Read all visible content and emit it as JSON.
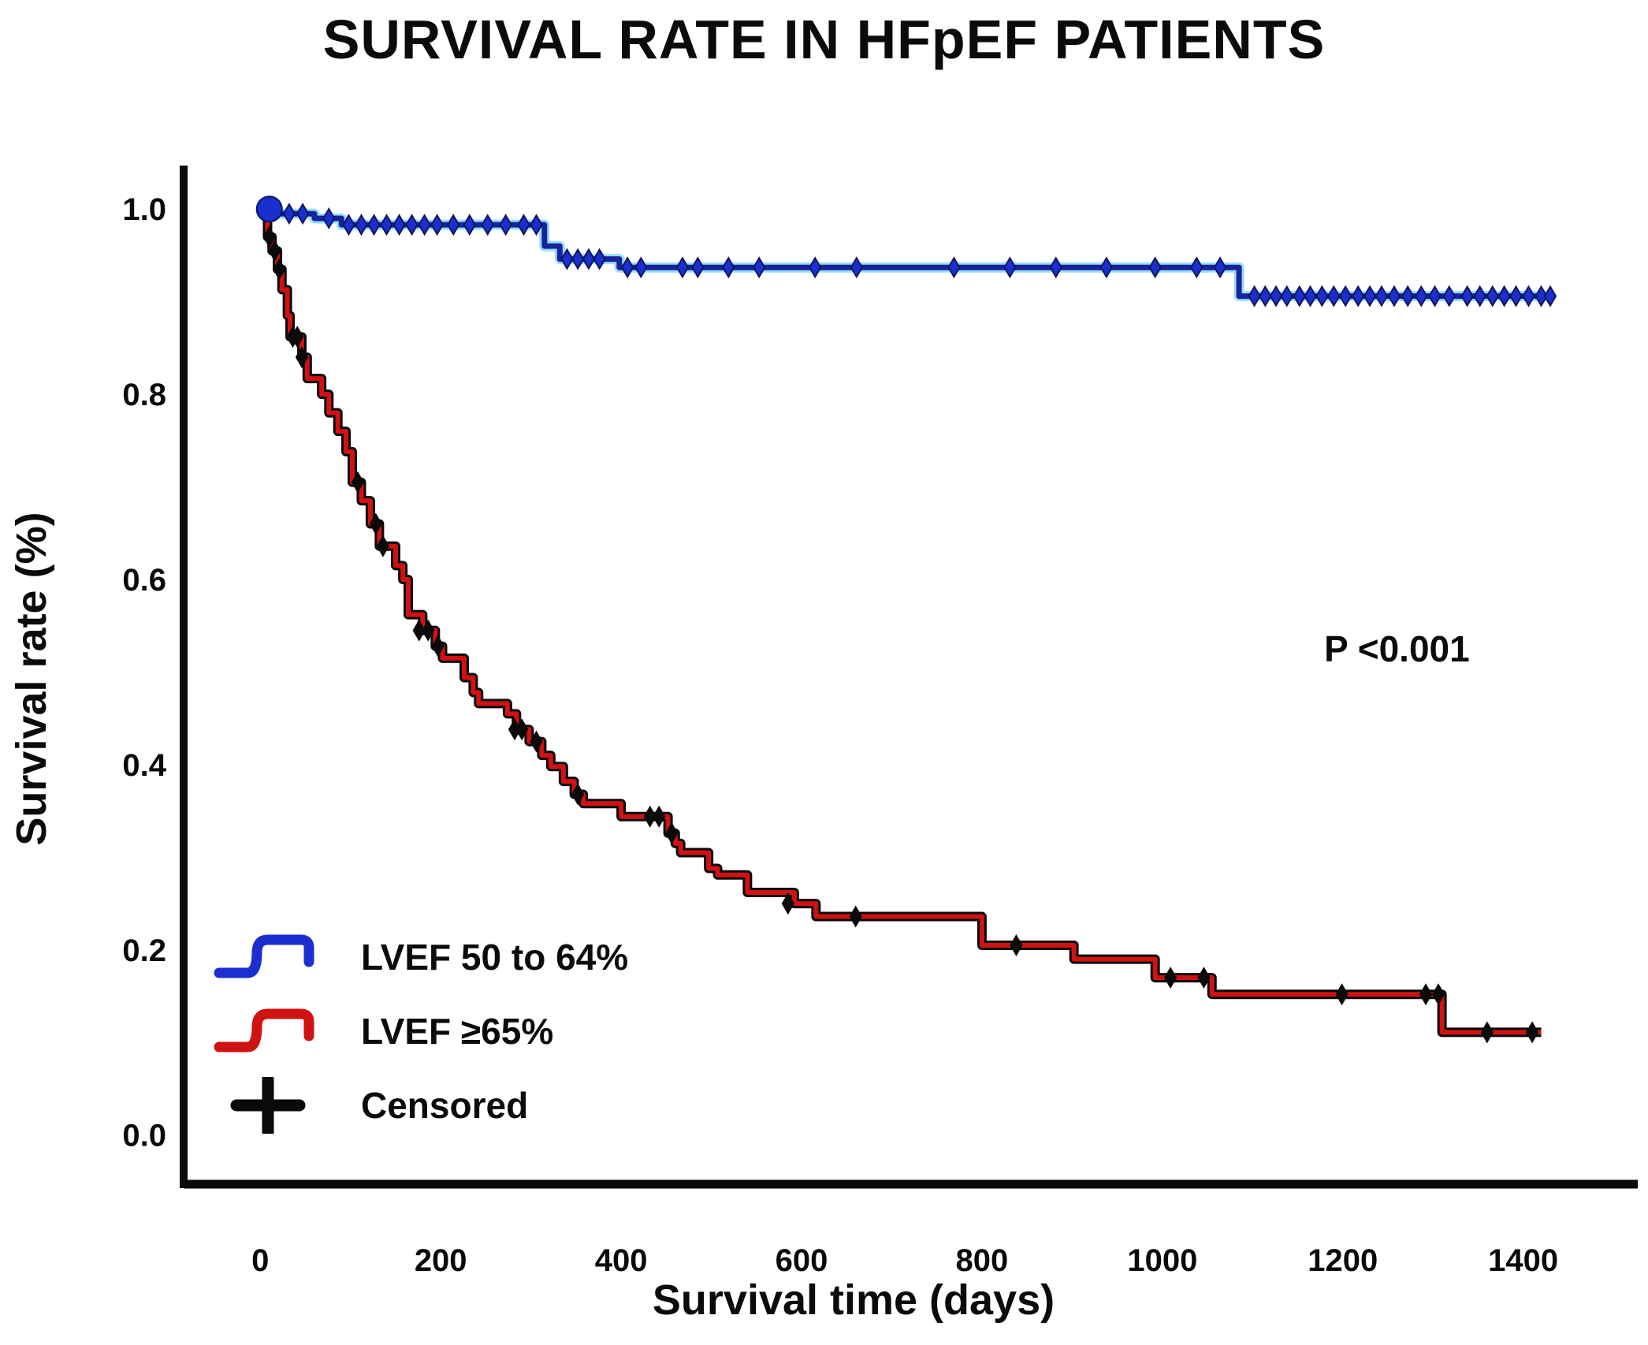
{
  "title": "SURVIVAL RATE IN HFpEF PATIENTS",
  "chart_data": {
    "type": "line",
    "subtype": "kaplan-meier-step",
    "title": "SURVIVAL RATE IN HFpEF PATIENTS",
    "xlabel": "Survival time (days)",
    "ylabel": "Survival rate (%)",
    "xlim": [
      -85,
      1527
    ],
    "ylim": [
      -0.053,
      1.047
    ],
    "x_ticks": [
      0,
      200,
      400,
      600,
      800,
      1000,
      1200,
      1400
    ],
    "y_ticks": [
      0.0,
      0.2,
      0.4,
      0.6,
      0.8,
      1.0
    ],
    "y_tick_labels": [
      "0.0",
      "0.2",
      "0.4",
      "0.6",
      "0.8",
      "1.0"
    ],
    "grid": false,
    "legend_position": "lower-left",
    "annotation": {
      "text": "P <0.001",
      "day": 1260,
      "value": 0.525
    },
    "colors": {
      "blue_line": "#15249b",
      "blue_halo": "#9adcf5",
      "blue_marker": "#1b2fd0",
      "red_line": "#cf1212",
      "black": "#0a0a0a"
    },
    "series": [
      {
        "name": "LVEF 50 to 64%",
        "color": "#15249b",
        "end_day": 1432,
        "start_marker": {
          "day": 10,
          "value": 1.0
        },
        "steps": [
          [
            0,
            1.0
          ],
          [
            20,
            0.995
          ],
          [
            60,
            0.99
          ],
          [
            90,
            0.983
          ],
          [
            315,
            0.96
          ],
          [
            332,
            0.946
          ],
          [
            398,
            0.937
          ],
          [
            1085,
            0.906
          ]
        ],
        "censors": [
          [
            8,
            1.0
          ],
          [
            14,
            1.0
          ],
          [
            32,
            0.995
          ],
          [
            47,
            0.995
          ],
          [
            76,
            0.99
          ],
          [
            98,
            0.983
          ],
          [
            112,
            0.983
          ],
          [
            126,
            0.983
          ],
          [
            140,
            0.983
          ],
          [
            154,
            0.983
          ],
          [
            168,
            0.983
          ],
          [
            182,
            0.983
          ],
          [
            196,
            0.983
          ],
          [
            214,
            0.983
          ],
          [
            232,
            0.983
          ],
          [
            252,
            0.983
          ],
          [
            272,
            0.983
          ],
          [
            292,
            0.983
          ],
          [
            306,
            0.983
          ],
          [
            340,
            0.946
          ],
          [
            352,
            0.946
          ],
          [
            364,
            0.946
          ],
          [
            376,
            0.946
          ],
          [
            407,
            0.937
          ],
          [
            422,
            0.937
          ],
          [
            468,
            0.937
          ],
          [
            485,
            0.937
          ],
          [
            519,
            0.937
          ],
          [
            553,
            0.937
          ],
          [
            615,
            0.937
          ],
          [
            661,
            0.937
          ],
          [
            769,
            0.937
          ],
          [
            831,
            0.937
          ],
          [
            882,
            0.937
          ],
          [
            938,
            0.937
          ],
          [
            992,
            0.937
          ],
          [
            1038,
            0.937
          ],
          [
            1064,
            0.937
          ],
          [
            1102,
            0.906
          ],
          [
            1114,
            0.906
          ],
          [
            1126,
            0.906
          ],
          [
            1138,
            0.906
          ],
          [
            1152,
            0.906
          ],
          [
            1164,
            0.906
          ],
          [
            1177,
            0.906
          ],
          [
            1190,
            0.906
          ],
          [
            1203,
            0.906
          ],
          [
            1217,
            0.906
          ],
          [
            1230,
            0.906
          ],
          [
            1243,
            0.906
          ],
          [
            1257,
            0.906
          ],
          [
            1272,
            0.906
          ],
          [
            1287,
            0.906
          ],
          [
            1302,
            0.906
          ],
          [
            1318,
            0.906
          ],
          [
            1338,
            0.906
          ],
          [
            1352,
            0.906
          ],
          [
            1366,
            0.906
          ],
          [
            1379,
            0.906
          ],
          [
            1392,
            0.906
          ],
          [
            1406,
            0.906
          ],
          [
            1420,
            0.906
          ],
          [
            1430,
            0.906
          ]
        ]
      },
      {
        "name": "LVEF ≥65%",
        "color": "#cf1212",
        "end_day": 1420,
        "steps": [
          [
            0,
            1.0
          ],
          [
            8,
            0.97
          ],
          [
            13,
            0.955
          ],
          [
            19,
            0.935
          ],
          [
            24,
            0.913
          ],
          [
            30,
            0.885
          ],
          [
            33,
            0.862
          ],
          [
            46,
            0.84
          ],
          [
            52,
            0.817
          ],
          [
            68,
            0.8
          ],
          [
            76,
            0.78
          ],
          [
            86,
            0.76
          ],
          [
            95,
            0.738
          ],
          [
            102,
            0.705
          ],
          [
            112,
            0.685
          ],
          [
            122,
            0.66
          ],
          [
            132,
            0.636
          ],
          [
            150,
            0.615
          ],
          [
            158,
            0.6
          ],
          [
            164,
            0.562
          ],
          [
            180,
            0.545
          ],
          [
            194,
            0.528
          ],
          [
            202,
            0.515
          ],
          [
            226,
            0.494
          ],
          [
            236,
            0.478
          ],
          [
            242,
            0.466
          ],
          [
            274,
            0.455
          ],
          [
            284,
            0.438
          ],
          [
            298,
            0.425
          ],
          [
            312,
            0.41
          ],
          [
            322,
            0.398
          ],
          [
            336,
            0.382
          ],
          [
            348,
            0.368
          ],
          [
            358,
            0.358
          ],
          [
            400,
            0.344
          ],
          [
            452,
            0.326
          ],
          [
            460,
            0.315
          ],
          [
            466,
            0.305
          ],
          [
            497,
            0.288
          ],
          [
            507,
            0.281
          ],
          [
            540,
            0.262
          ],
          [
            592,
            0.25
          ],
          [
            616,
            0.236
          ],
          [
            800,
            0.205
          ],
          [
            902,
            0.19
          ],
          [
            992,
            0.17
          ],
          [
            1055,
            0.152
          ],
          [
            1310,
            0.111
          ]
        ],
        "censors": [
          [
            10,
            0.97
          ],
          [
            16,
            0.955
          ],
          [
            21,
            0.935
          ],
          [
            36,
            0.862
          ],
          [
            41,
            0.862
          ],
          [
            46,
            0.84
          ],
          [
            108,
            0.705
          ],
          [
            128,
            0.66
          ],
          [
            136,
            0.636
          ],
          [
            176,
            0.545
          ],
          [
            186,
            0.545
          ],
          [
            197,
            0.528
          ],
          [
            282,
            0.438
          ],
          [
            290,
            0.438
          ],
          [
            306,
            0.425
          ],
          [
            352,
            0.368
          ],
          [
            432,
            0.344
          ],
          [
            442,
            0.344
          ],
          [
            456,
            0.326
          ],
          [
            585,
            0.25
          ],
          [
            660,
            0.236
          ],
          [
            838,
            0.205
          ],
          [
            1009,
            0.17
          ],
          [
            1046,
            0.17
          ],
          [
            1199,
            0.152
          ],
          [
            1292,
            0.152
          ],
          [
            1306,
            0.152
          ],
          [
            1360,
            0.111
          ],
          [
            1410,
            0.111
          ]
        ]
      }
    ],
    "legend": [
      {
        "label": "LVEF 50 to 64%",
        "color": "#1b2fd0",
        "symbol": "step-line"
      },
      {
        "label": "LVEF ≥65%",
        "color": "#cf1212",
        "symbol": "step-line"
      },
      {
        "label": "Censored",
        "color": "#0a0a0a",
        "symbol": "plus"
      }
    ]
  }
}
